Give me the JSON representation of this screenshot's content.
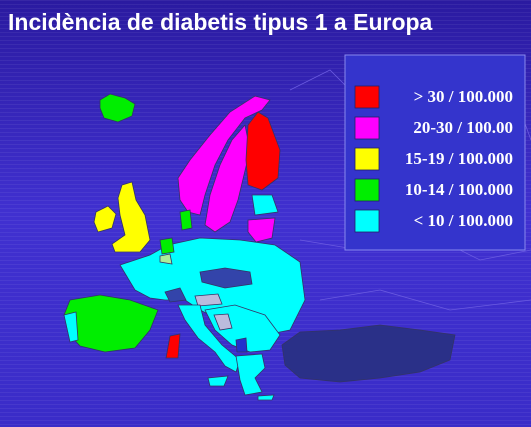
{
  "title": "Incidència de diabetis tipus 1 a Europa",
  "legend": {
    "items": [
      {
        "label": "> 30 / 100.000",
        "color": "#ff0000"
      },
      {
        "label": "20-30 / 100.00",
        "color": "#ff00ff"
      },
      {
        "label": "15-19 / 100.000",
        "color": "#ffff00"
      },
      {
        "label": "10-14 / 100.000",
        "color": "#00ee00"
      },
      {
        "label": "< 10 / 100.000",
        "color": "#00ffff"
      }
    ]
  }
}
